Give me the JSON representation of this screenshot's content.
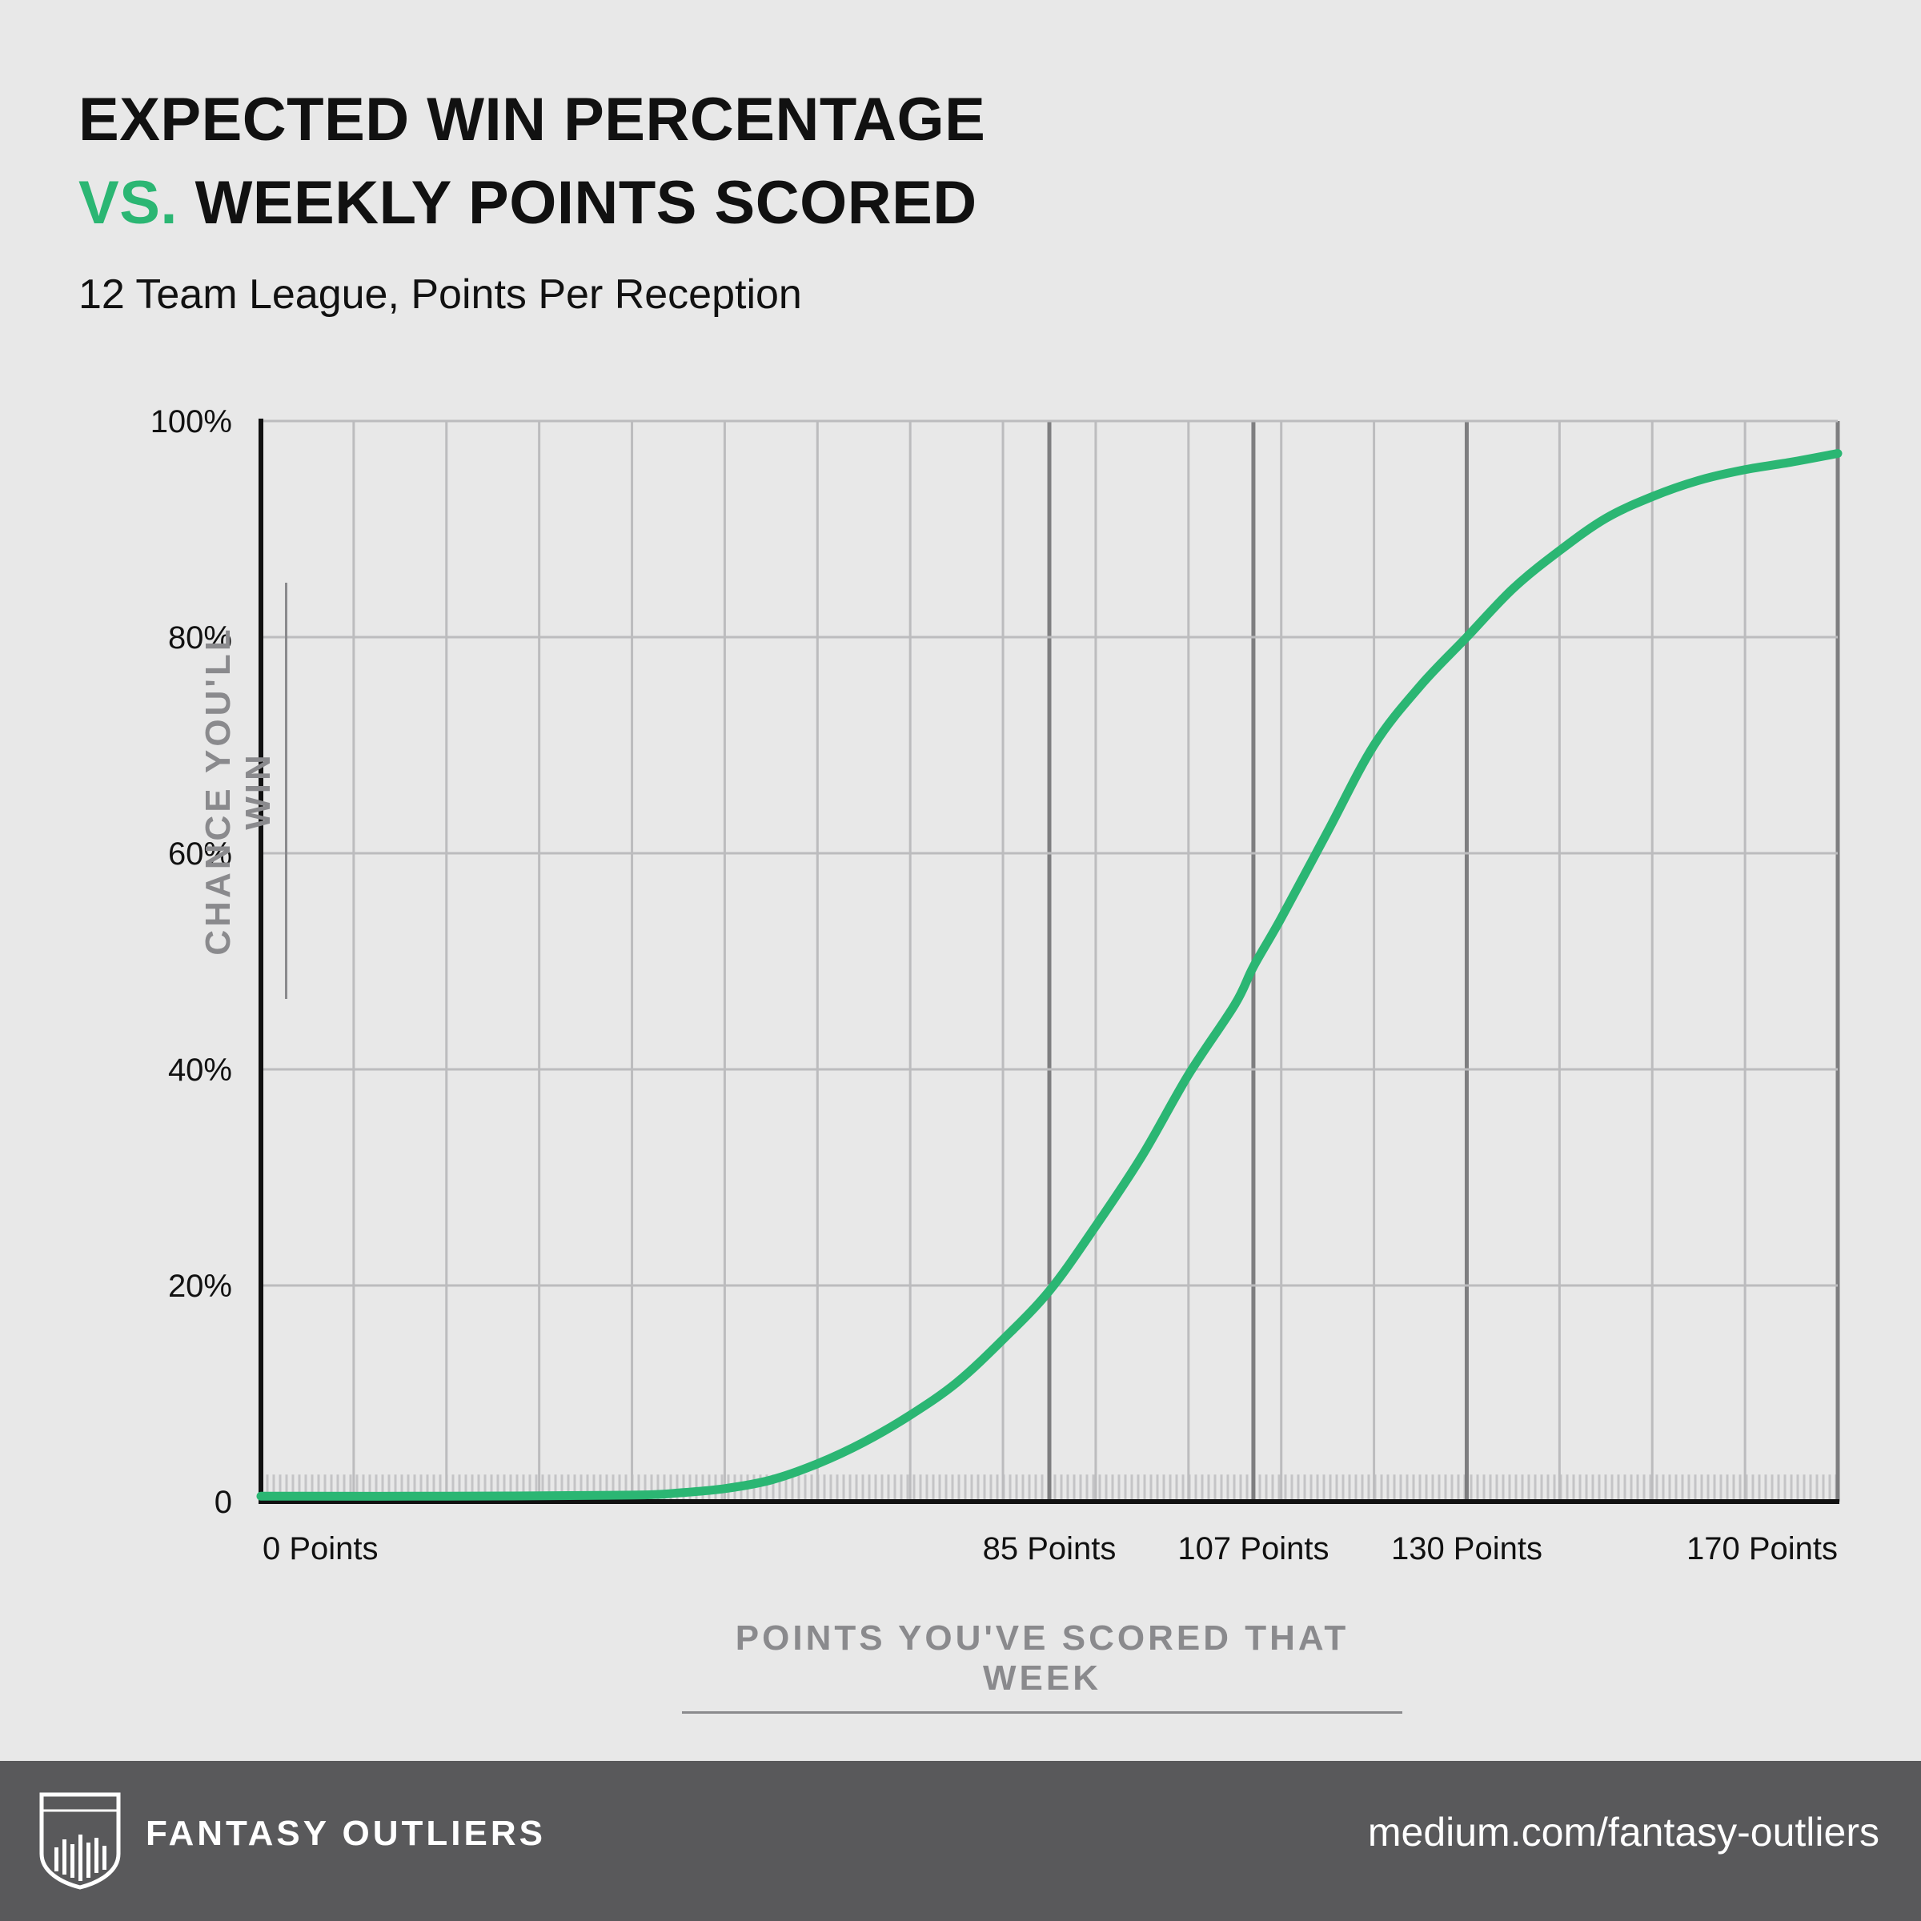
{
  "title": {
    "line1": "EXPECTED WIN PERCENTAGE",
    "accent": "VS.",
    "line2": "WEEKLY POINTS SCORED"
  },
  "subtitle": "12 Team League, Points Per Reception",
  "footer": {
    "brand": "FANTASY OUTLIERS",
    "url": "medium.com/fantasy-outliers"
  },
  "colors": {
    "line": "#2bb673",
    "accent": "#2bb673",
    "axis_title": "#8a8a8d",
    "grid": "#bcbcbe",
    "highlight_grid": "#7e7e80",
    "footer_bg": "#59595b"
  },
  "chart_data": {
    "type": "line",
    "ylabel": "CHANCE YOU'LL WIN",
    "xlabel": "POINTS YOU'VE SCORED THAT WEEK",
    "xlim": [
      0,
      170
    ],
    "ylim": [
      0,
      100
    ],
    "grid": true,
    "y_ticks": [
      {
        "value": 0,
        "label": "0"
      },
      {
        "value": 20,
        "label": "20%"
      },
      {
        "value": 40,
        "label": "40%"
      },
      {
        "value": 60,
        "label": "60%"
      },
      {
        "value": 80,
        "label": "80%"
      },
      {
        "value": 100,
        "label": "100%"
      }
    ],
    "x_tick_labels": [
      {
        "value": 0,
        "label": "0 Points"
      },
      {
        "value": 85,
        "label": "85 Points"
      },
      {
        "value": 107,
        "label": "107 Points"
      },
      {
        "value": 130,
        "label": "130 Points"
      },
      {
        "value": 170,
        "label": "170 Points"
      }
    ],
    "highlighted_x": [
      85,
      107,
      130,
      170
    ],
    "series": [
      {
        "x": [
          0,
          20,
          40,
          45,
          50,
          55,
          60,
          65,
          70,
          75,
          80,
          85,
          90,
          95,
          100,
          105,
          107,
          110,
          115,
          120,
          125,
          130,
          135,
          140,
          145,
          150,
          155,
          160,
          165,
          170
        ],
        "values": [
          0.5,
          0.5,
          0.6,
          0.8,
          1.2,
          2,
          3.5,
          5.5,
          8,
          11,
          15,
          19.5,
          25.5,
          32,
          39.5,
          46,
          49.5,
          54,
          62,
          70,
          75.5,
          80,
          84.5,
          88,
          91,
          93,
          94.5,
          95.5,
          96.2,
          97
        ]
      }
    ]
  }
}
